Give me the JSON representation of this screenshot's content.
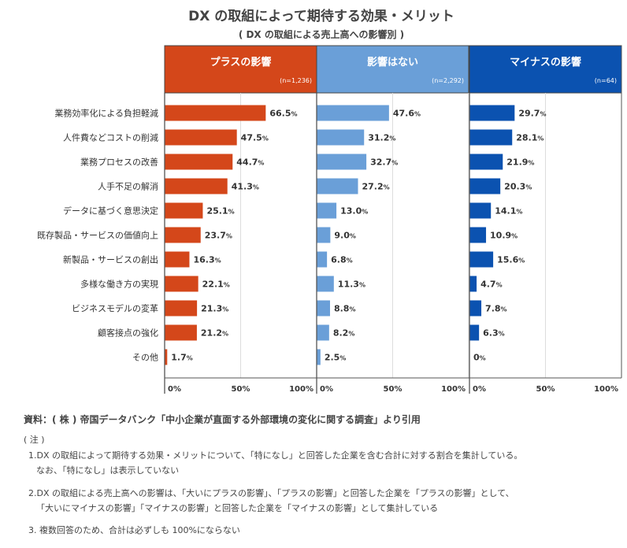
{
  "title": "DX の取組によって期待する効果・メリット",
  "subtitle": "( DX の取組による売上高への影響別 )",
  "colors": {
    "plus": "#d4471a",
    "none": "#6a9fd8",
    "minus": "#0b52b0",
    "axis": "#555555",
    "grid": "#dddddd"
  },
  "chart_data": {
    "type": "bar",
    "orientation": "horizontal",
    "title": "DX の取組によって期待する効果・メリット",
    "subtitle": "( DX の取組による売上高への影響別 )",
    "xlim": [
      0,
      100
    ],
    "x_ticks": [
      "0%",
      "50%",
      "100%"
    ],
    "value_suffix": "%",
    "categories": [
      "業務効率化による負担軽減",
      "人件費などコストの削減",
      "業務プロセスの改善",
      "人手不足の解消",
      "データに基づく意思決定",
      "既存製品・サービスの価値向上",
      "新製品・サービスの創出",
      "多様な働き方の実現",
      "ビジネスモデルの変革",
      "顧客接点の強化",
      "その他"
    ],
    "series": [
      {
        "name": "プラスの影響",
        "n_label": "(n=1,236)",
        "color": "#d4471a",
        "values": [
          66.5,
          47.5,
          44.7,
          41.3,
          25.1,
          23.7,
          16.3,
          22.1,
          21.3,
          21.2,
          1.7
        ],
        "labels": [
          "66.5",
          "47.5",
          "44.7",
          "41.3",
          "25.1",
          "23.7",
          "16.3",
          "22.1",
          "21.3",
          "21.2",
          "1.7"
        ]
      },
      {
        "name": "影響はない",
        "n_label": "(n=2,292)",
        "color": "#6a9fd8",
        "values": [
          47.6,
          31.2,
          32.7,
          27.2,
          13.0,
          9.0,
          6.8,
          11.3,
          8.8,
          8.2,
          2.5
        ],
        "labels": [
          "47.6",
          "31.2",
          "32.7",
          "27.2",
          "13.0",
          "9.0",
          "6.8",
          "11.3",
          "8.8",
          "8.2",
          "2.5"
        ]
      },
      {
        "name": "マイナスの影響",
        "n_label": "(n=64)",
        "color": "#0b52b0",
        "values": [
          29.7,
          28.1,
          21.9,
          20.3,
          14.1,
          10.9,
          15.6,
          4.7,
          7.8,
          6.3,
          0
        ],
        "labels": [
          "29.7",
          "28.1",
          "21.9",
          "20.3",
          "14.1",
          "10.9",
          "15.6",
          "4.7",
          "7.8",
          "6.3",
          "0"
        ]
      }
    ]
  },
  "source": "資料：( 株 ) 帝国データバンク「中小企業が直面する外部環境の変化に関する調査」より引用",
  "notes_heading": "( 注 )",
  "notes": [
    "1.DX の取組によって期待する効果・メリットについて、「特になし」と回答した企業を含む合計に対する割合を集計している。",
    "なお、「特になし」は表示していない",
    "2.DX の取組による売上高への影響は、「大いにプラスの影響」、「プラスの影響」と回答した企業を「プラスの影響」として、",
    "「大いにマイナスの影響」「マイナスの影響」と回答した企業を「マイナスの影響」として集計している",
    "3. 複数回答のため、合計は必ずしも 100%にならない"
  ]
}
